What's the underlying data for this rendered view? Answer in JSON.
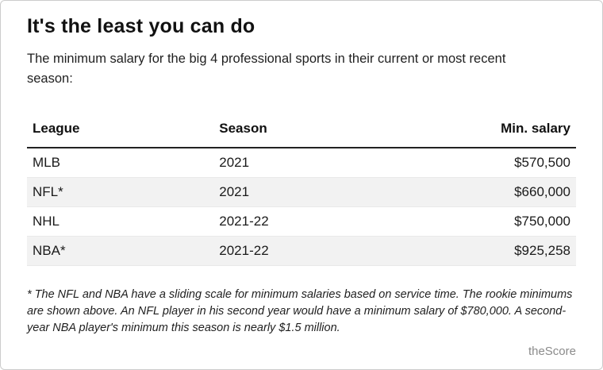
{
  "title": "It's the least you can do",
  "subtitle": "The minimum salary for the big 4 professional sports in their current or most recent season:",
  "table": {
    "headers": [
      "League",
      "Season",
      "Min. salary"
    ],
    "rows": [
      [
        "MLB",
        "2021",
        "$570,500"
      ],
      [
        "NFL*",
        "2021",
        "$660,000"
      ],
      [
        "NHL",
        "2021-22",
        "$750,000"
      ],
      [
        "NBA*",
        "2021-22",
        "$925,258"
      ]
    ]
  },
  "footnote": "* The NFL and NBA have a sliding scale for minimum salaries based on service time. The rookie minimums are shown above. An NFL player in his second year would have a minimum salary of $780,000. A second-year NBA player's minimum this season is nearly $1.5 million.",
  "attribution": "theScore",
  "colors": {
    "row_alternate": "#f2f2f2",
    "header_rule": "#222222",
    "attribution_gray": "#8b8b8b"
  },
  "chart_data": {
    "type": "table",
    "title": "It's the least you can do",
    "columns": [
      "League",
      "Season",
      "Min. salary"
    ],
    "rows": [
      {
        "league": "MLB",
        "season": "2021",
        "min_salary": 570500
      },
      {
        "league": "NFL*",
        "season": "2021",
        "min_salary": 660000
      },
      {
        "league": "NHL",
        "season": "2021-22",
        "min_salary": 750000
      },
      {
        "league": "NBA*",
        "season": "2021-22",
        "min_salary": 925258
      }
    ],
    "footnote": "* The NFL and NBA have a sliding scale for minimum salaries based on service time. The rookie minimums are shown above. An NFL player in his second year would have a minimum salary of $780,000. A second-year NBA player's minimum this season is nearly $1.5 million.",
    "source": "theScore"
  }
}
